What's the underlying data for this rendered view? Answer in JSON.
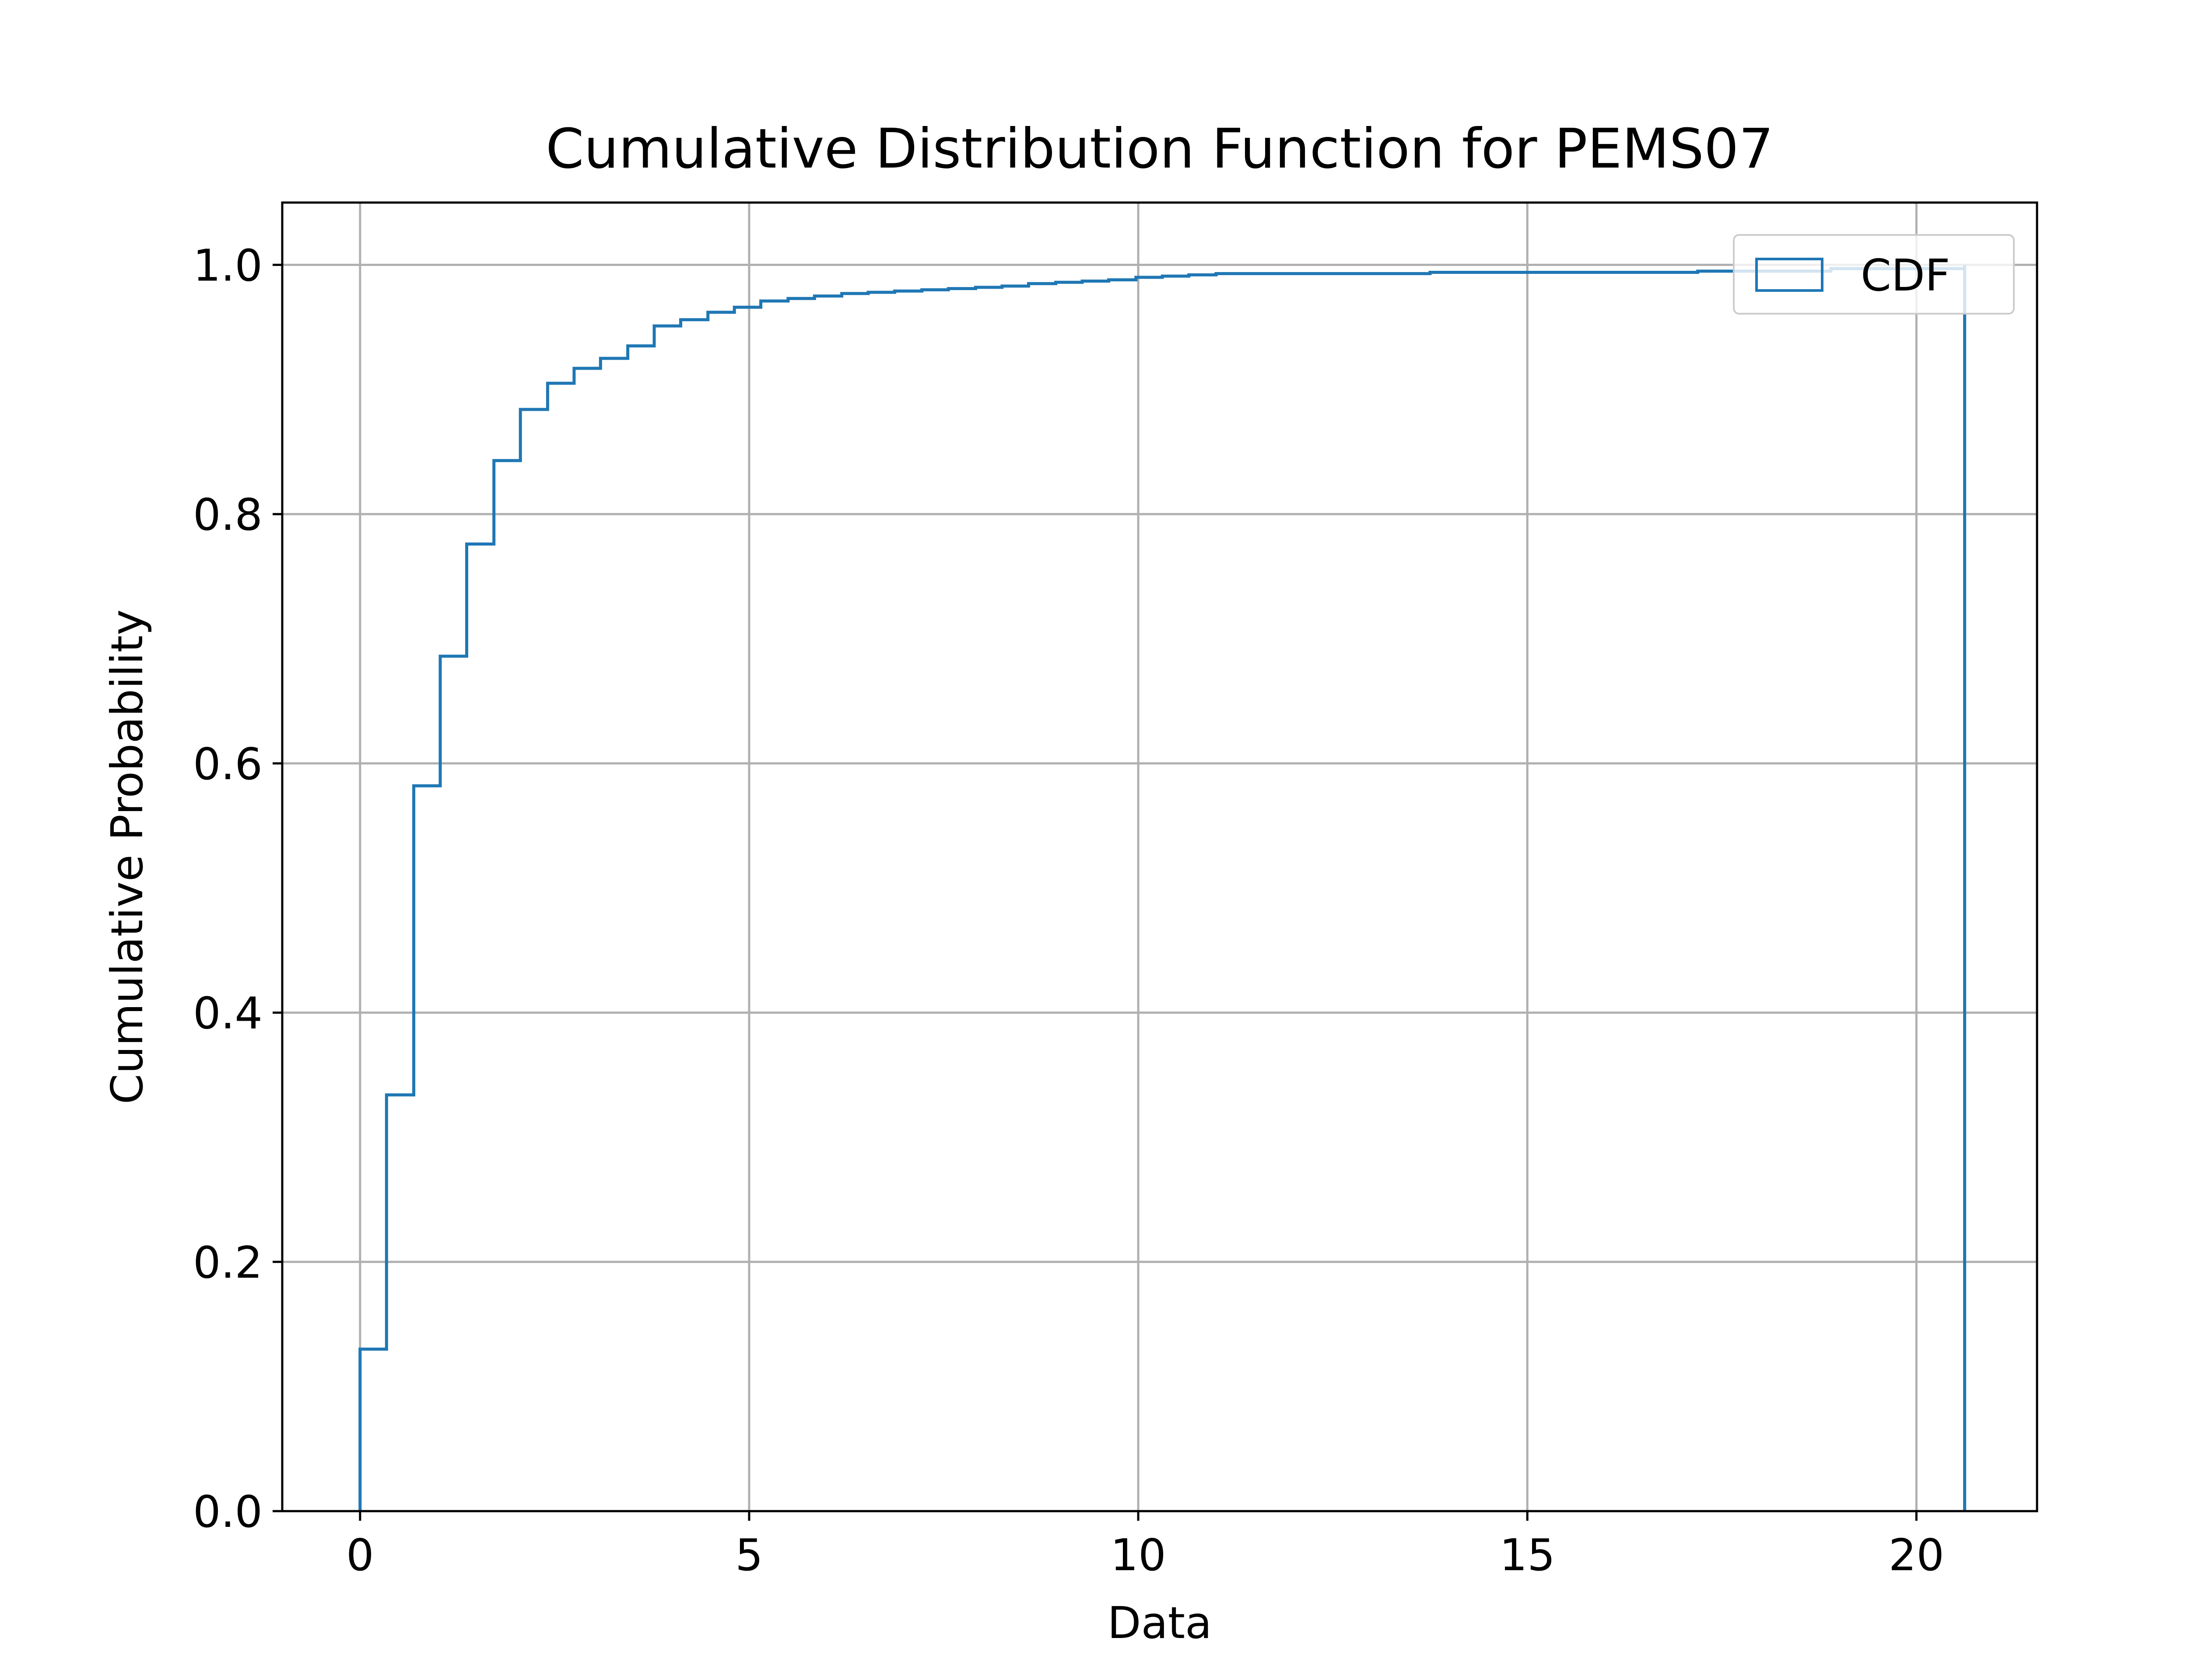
{
  "chart_data": {
    "type": "step",
    "title": "Cumulative Distribution Function for PEMS07",
    "xlabel": "Data",
    "ylabel": "Cumulative Probability",
    "xlim": [
      -1.0,
      21.55
    ],
    "ylim": [
      0.0,
      1.05
    ],
    "grid": true,
    "legend_position": "upper right",
    "x_ticks": [
      0,
      5,
      10,
      15,
      20
    ],
    "x_tick_labels": [
      "0",
      "5",
      "10",
      "15",
      "20"
    ],
    "y_ticks": [
      0.0,
      0.2,
      0.4,
      0.6,
      0.8,
      1.0
    ],
    "y_tick_labels": [
      "0.0",
      "0.2",
      "0.4",
      "0.6",
      "0.8",
      "1.0"
    ],
    "series": [
      {
        "name": "CDF",
        "color": "#1f77b4",
        "bin_edges": [
          0.0,
          0.34,
          0.69,
          1.03,
          1.37,
          1.72,
          2.06,
          2.41,
          2.75,
          3.09,
          3.44,
          3.78,
          4.12,
          4.47,
          4.81,
          5.15,
          5.5,
          5.84,
          6.19,
          6.53,
          6.87,
          7.22,
          7.56,
          7.91,
          8.25,
          8.59,
          8.94,
          9.28,
          9.62,
          9.97,
          10.31,
          10.65,
          11.0,
          13.75,
          17.19,
          18.9,
          20.62
        ],
        "cumulative": [
          0.13,
          0.334,
          0.582,
          0.686,
          0.776,
          0.843,
          0.884,
          0.905,
          0.917,
          0.925,
          0.935,
          0.951,
          0.956,
          0.962,
          0.966,
          0.971,
          0.973,
          0.975,
          0.977,
          0.978,
          0.979,
          0.98,
          0.981,
          0.982,
          0.983,
          0.985,
          0.986,
          0.987,
          0.988,
          0.99,
          0.991,
          0.992,
          0.993,
          0.994,
          0.995,
          0.997,
          1.0
        ]
      }
    ]
  }
}
